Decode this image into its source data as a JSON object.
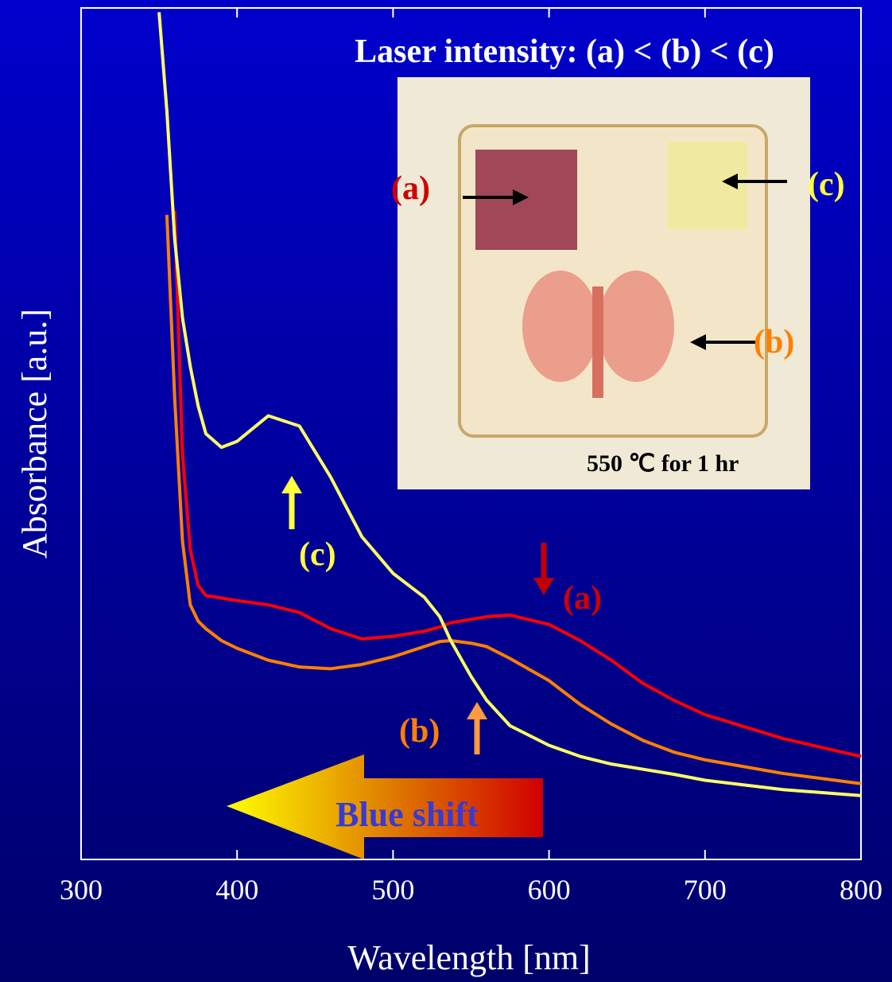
{
  "chart_data": {
    "type": "line",
    "x_label": "Wavelength [nm]",
    "y_label": "Absorbance [a.u.]",
    "xlim": [
      300,
      800
    ],
    "xticks": [
      300,
      400,
      500,
      600,
      700,
      800
    ],
    "ylim": [
      0,
      100
    ],
    "x": [
      350,
      355,
      360,
      365,
      370,
      375,
      380,
      390,
      400,
      420,
      440,
      460,
      480,
      500,
      520,
      530,
      537,
      550,
      560,
      575,
      600,
      620,
      640,
      660,
      680,
      700,
      750,
      800
    ],
    "series": [
      {
        "name": "(a)",
        "color": "#ff0000",
        "values": [
          null,
          null,
          76.2,
          47.7,
          36.4,
          32.2,
          31.0,
          30.7,
          30.4,
          29.9,
          29.0,
          27.1,
          25.9,
          26.2,
          26.8,
          27.3,
          27.8,
          28.2,
          28.5,
          28.7,
          27.6,
          25.7,
          23.4,
          20.7,
          18.7,
          17.0,
          14.2,
          12.1
        ]
      },
      {
        "name": "(b)",
        "color": "#ff8000",
        "values": [
          null,
          75.7,
          54.2,
          37.4,
          29.9,
          28.0,
          27.1,
          25.7,
          24.8,
          23.4,
          22.6,
          22.4,
          22.9,
          23.8,
          25.0,
          25.6,
          25.7,
          25.4,
          25.0,
          23.6,
          21.0,
          18.2,
          15.9,
          14.0,
          12.6,
          11.7,
          10.1,
          8.9
        ]
      },
      {
        "name": "(c)",
        "color": "#ffff66",
        "values": [
          99.5,
          87.9,
          72.9,
          63.6,
          57.9,
          53.3,
          50.0,
          48.4,
          49.1,
          52.1,
          50.9,
          44.9,
          37.9,
          33.6,
          30.8,
          28.5,
          25.7,
          21.5,
          18.7,
          15.7,
          13.4,
          12.1,
          11.2,
          10.6,
          10.0,
          9.3,
          8.2,
          7.5
        ]
      }
    ],
    "annotations": [
      "Laser intensity: (a) < (b) < (c)",
      "Blue shift",
      "(a)",
      "(c)",
      "(b)",
      "550 ℃ for 1 hr"
    ]
  }
}
